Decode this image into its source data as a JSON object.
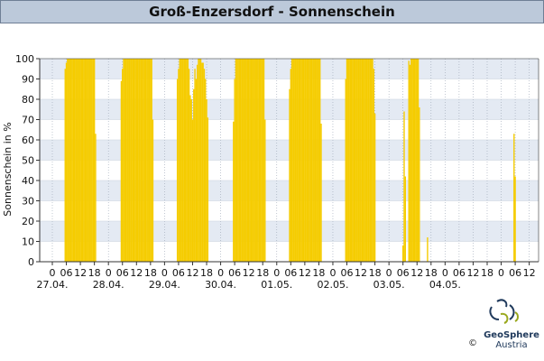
{
  "title": "Groß-Enzersdorf - Sonnenschein",
  "logo": {
    "name": "GeoSphere",
    "sub": "Austria",
    "copyright": "©"
  },
  "chart_data": {
    "type": "bar",
    "ylabel": "Sonnenschein in %",
    "ylim": [
      0,
      100
    ],
    "yticks": [
      0,
      10,
      20,
      30,
      40,
      50,
      60,
      70,
      80,
      90,
      100
    ],
    "x_hours_range": [
      0,
      204
    ],
    "hour_ticks": [
      {
        "h": 0,
        "label": "0"
      },
      {
        "h": 6,
        "label": "06"
      },
      {
        "h": 12,
        "label": "12"
      },
      {
        "h": 18,
        "label": "18"
      },
      {
        "h": 24,
        "label": "0"
      },
      {
        "h": 30,
        "label": "06"
      },
      {
        "h": 36,
        "label": "12"
      },
      {
        "h": 42,
        "label": "18"
      },
      {
        "h": 48,
        "label": "0"
      },
      {
        "h": 54,
        "label": "06"
      },
      {
        "h": 60,
        "label": "12"
      },
      {
        "h": 66,
        "label": "18"
      },
      {
        "h": 72,
        "label": "0"
      },
      {
        "h": 78,
        "label": "06"
      },
      {
        "h": 84,
        "label": "12"
      },
      {
        "h": 90,
        "label": "18"
      },
      {
        "h": 96,
        "label": "0"
      },
      {
        "h": 102,
        "label": "06"
      },
      {
        "h": 108,
        "label": "12"
      },
      {
        "h": 114,
        "label": "18"
      },
      {
        "h": 120,
        "label": "0"
      },
      {
        "h": 126,
        "label": "06"
      },
      {
        "h": 132,
        "label": "12"
      },
      {
        "h": 138,
        "label": "18"
      },
      {
        "h": 144,
        "label": "0"
      },
      {
        "h": 150,
        "label": "06"
      },
      {
        "h": 156,
        "label": "12"
      },
      {
        "h": 162,
        "label": "18"
      },
      {
        "h": 168,
        "label": "0"
      },
      {
        "h": 174,
        "label": "06"
      },
      {
        "h": 180,
        "label": "12"
      },
      {
        "h": 186,
        "label": "18"
      },
      {
        "h": 192,
        "label": "0"
      },
      {
        "h": 198,
        "label": "06"
      },
      {
        "h": 204,
        "label": "12"
      }
    ],
    "date_labels": [
      {
        "h": 0,
        "label": "27.04."
      },
      {
        "h": 24,
        "label": "28.04."
      },
      {
        "h": 48,
        "label": "29.04."
      },
      {
        "h": 72,
        "label": "30.04."
      },
      {
        "h": 96,
        "label": "01.05."
      },
      {
        "h": 120,
        "label": "02.05."
      },
      {
        "h": 144,
        "label": "03.05."
      },
      {
        "h": 168,
        "label": "04.05."
      }
    ],
    "bar_color": "#f5cc00",
    "bars": [
      {
        "h": 5.5,
        "v": 95
      },
      {
        "h": 6,
        "v": 98
      },
      {
        "h": 6.5,
        "v": 100
      },
      {
        "h": 7,
        "v": 100
      },
      {
        "h": 7.5,
        "v": 100
      },
      {
        "h": 8,
        "v": 100
      },
      {
        "h": 8.5,
        "v": 100
      },
      {
        "h": 9,
        "v": 100
      },
      {
        "h": 9.5,
        "v": 100
      },
      {
        "h": 10,
        "v": 100
      },
      {
        "h": 10.5,
        "v": 100
      },
      {
        "h": 11,
        "v": 100
      },
      {
        "h": 11.5,
        "v": 100
      },
      {
        "h": 12,
        "v": 100
      },
      {
        "h": 12.5,
        "v": 100
      },
      {
        "h": 13,
        "v": 100
      },
      {
        "h": 13.5,
        "v": 100
      },
      {
        "h": 14,
        "v": 100
      },
      {
        "h": 14.5,
        "v": 100
      },
      {
        "h": 15,
        "v": 100
      },
      {
        "h": 15.5,
        "v": 100
      },
      {
        "h": 16,
        "v": 100
      },
      {
        "h": 16.5,
        "v": 100
      },
      {
        "h": 17,
        "v": 100
      },
      {
        "h": 17.5,
        "v": 100
      },
      {
        "h": 18,
        "v": 100
      },
      {
        "h": 18.5,
        "v": 63
      },
      {
        "h": 29.5,
        "v": 89
      },
      {
        "h": 30,
        "v": 95
      },
      {
        "h": 30.5,
        "v": 100
      },
      {
        "h": 31,
        "v": 100
      },
      {
        "h": 31.5,
        "v": 100
      },
      {
        "h": 32,
        "v": 100
      },
      {
        "h": 32.5,
        "v": 100
      },
      {
        "h": 33,
        "v": 100
      },
      {
        "h": 33.5,
        "v": 100
      },
      {
        "h": 34,
        "v": 100
      },
      {
        "h": 34.5,
        "v": 100
      },
      {
        "h": 35,
        "v": 100
      },
      {
        "h": 35.5,
        "v": 100
      },
      {
        "h": 36,
        "v": 100
      },
      {
        "h": 36.5,
        "v": 100
      },
      {
        "h": 37,
        "v": 100
      },
      {
        "h": 37.5,
        "v": 100
      },
      {
        "h": 38,
        "v": 100
      },
      {
        "h": 38.5,
        "v": 100
      },
      {
        "h": 39,
        "v": 100
      },
      {
        "h": 39.5,
        "v": 100
      },
      {
        "h": 40,
        "v": 100
      },
      {
        "h": 40.5,
        "v": 100
      },
      {
        "h": 41,
        "v": 100
      },
      {
        "h": 41.5,
        "v": 100
      },
      {
        "h": 42,
        "v": 100
      },
      {
        "h": 42.5,
        "v": 100
      },
      {
        "h": 43,
        "v": 70
      },
      {
        "h": 53.5,
        "v": 90
      },
      {
        "h": 54,
        "v": 95
      },
      {
        "h": 54.5,
        "v": 100
      },
      {
        "h": 55,
        "v": 100
      },
      {
        "h": 55.5,
        "v": 100
      },
      {
        "h": 56,
        "v": 100
      },
      {
        "h": 56.5,
        "v": 100
      },
      {
        "h": 57,
        "v": 100
      },
      {
        "h": 57.5,
        "v": 100
      },
      {
        "h": 58,
        "v": 100
      },
      {
        "h": 58.5,
        "v": 95
      },
      {
        "h": 59,
        "v": 82
      },
      {
        "h": 59.5,
        "v": 80
      },
      {
        "h": 60,
        "v": 70
      },
      {
        "h": 60.5,
        "v": 85
      },
      {
        "h": 61,
        "v": 95
      },
      {
        "h": 61.5,
        "v": 90
      },
      {
        "h": 62,
        "v": 97
      },
      {
        "h": 62.5,
        "v": 100
      },
      {
        "h": 63,
        "v": 100
      },
      {
        "h": 63.5,
        "v": 100
      },
      {
        "h": 64,
        "v": 98
      },
      {
        "h": 64.5,
        "v": 98
      },
      {
        "h": 65,
        "v": 95
      },
      {
        "h": 65.5,
        "v": 90
      },
      {
        "h": 66,
        "v": 80
      },
      {
        "h": 66.5,
        "v": 71
      },
      {
        "h": 77.5,
        "v": 69
      },
      {
        "h": 78,
        "v": 90
      },
      {
        "h": 78.5,
        "v": 100
      },
      {
        "h": 79,
        "v": 100
      },
      {
        "h": 79.5,
        "v": 100
      },
      {
        "h": 80,
        "v": 100
      },
      {
        "h": 80.5,
        "v": 100
      },
      {
        "h": 81,
        "v": 100
      },
      {
        "h": 81.5,
        "v": 100
      },
      {
        "h": 82,
        "v": 100
      },
      {
        "h": 82.5,
        "v": 100
      },
      {
        "h": 83,
        "v": 100
      },
      {
        "h": 83.5,
        "v": 100
      },
      {
        "h": 84,
        "v": 100
      },
      {
        "h": 84.5,
        "v": 100
      },
      {
        "h": 85,
        "v": 100
      },
      {
        "h": 85.5,
        "v": 100
      },
      {
        "h": 86,
        "v": 100
      },
      {
        "h": 86.5,
        "v": 100
      },
      {
        "h": 87,
        "v": 100
      },
      {
        "h": 87.5,
        "v": 100
      },
      {
        "h": 88,
        "v": 100
      },
      {
        "h": 88.5,
        "v": 100
      },
      {
        "h": 89,
        "v": 100
      },
      {
        "h": 89.5,
        "v": 100
      },
      {
        "h": 90,
        "v": 100
      },
      {
        "h": 90.5,
        "v": 100
      },
      {
        "h": 91,
        "v": 70
      },
      {
        "h": 101.5,
        "v": 85
      },
      {
        "h": 102,
        "v": 95
      },
      {
        "h": 102.5,
        "v": 100
      },
      {
        "h": 103,
        "v": 100
      },
      {
        "h": 103.5,
        "v": 100
      },
      {
        "h": 104,
        "v": 100
      },
      {
        "h": 104.5,
        "v": 100
      },
      {
        "h": 105,
        "v": 100
      },
      {
        "h": 105.5,
        "v": 100
      },
      {
        "h": 106,
        "v": 100
      },
      {
        "h": 106.5,
        "v": 100
      },
      {
        "h": 107,
        "v": 100
      },
      {
        "h": 107.5,
        "v": 100
      },
      {
        "h": 108,
        "v": 100
      },
      {
        "h": 108.5,
        "v": 100
      },
      {
        "h": 109,
        "v": 100
      },
      {
        "h": 109.5,
        "v": 100
      },
      {
        "h": 110,
        "v": 100
      },
      {
        "h": 110.5,
        "v": 100
      },
      {
        "h": 111,
        "v": 100
      },
      {
        "h": 111.5,
        "v": 100
      },
      {
        "h": 112,
        "v": 100
      },
      {
        "h": 112.5,
        "v": 100
      },
      {
        "h": 113,
        "v": 100
      },
      {
        "h": 113.5,
        "v": 100
      },
      {
        "h": 114,
        "v": 100
      },
      {
        "h": 114.5,
        "v": 100
      },
      {
        "h": 115,
        "v": 68
      },
      {
        "h": 125.5,
        "v": 90
      },
      {
        "h": 126,
        "v": 100
      },
      {
        "h": 126.5,
        "v": 100
      },
      {
        "h": 127,
        "v": 100
      },
      {
        "h": 127.5,
        "v": 100
      },
      {
        "h": 128,
        "v": 100
      },
      {
        "h": 128.5,
        "v": 100
      },
      {
        "h": 129,
        "v": 100
      },
      {
        "h": 129.5,
        "v": 100
      },
      {
        "h": 130,
        "v": 100
      },
      {
        "h": 130.5,
        "v": 100
      },
      {
        "h": 131,
        "v": 100
      },
      {
        "h": 131.5,
        "v": 100
      },
      {
        "h": 132,
        "v": 100
      },
      {
        "h": 132.5,
        "v": 100
      },
      {
        "h": 133,
        "v": 100
      },
      {
        "h": 133.5,
        "v": 100
      },
      {
        "h": 134,
        "v": 100
      },
      {
        "h": 134.5,
        "v": 100
      },
      {
        "h": 135,
        "v": 100
      },
      {
        "h": 135.5,
        "v": 100
      },
      {
        "h": 136,
        "v": 100
      },
      {
        "h": 136.5,
        "v": 100
      },
      {
        "h": 137,
        "v": 100
      },
      {
        "h": 137.5,
        "v": 95
      },
      {
        "h": 138,
        "v": 73
      },
      {
        "h": 150,
        "v": 8
      },
      {
        "h": 150.5,
        "v": 74
      },
      {
        "h": 151,
        "v": 42
      },
      {
        "h": 152.5,
        "v": 99
      },
      {
        "h": 153,
        "v": 97
      },
      {
        "h": 153.5,
        "v": 100
      },
      {
        "h": 154,
        "v": 100
      },
      {
        "h": 154.5,
        "v": 100
      },
      {
        "h": 155,
        "v": 100
      },
      {
        "h": 155.5,
        "v": 100
      },
      {
        "h": 156,
        "v": 100
      },
      {
        "h": 156.5,
        "v": 100
      },
      {
        "h": 157,
        "v": 76
      },
      {
        "h": 160.5,
        "v": 12
      },
      {
        "h": 197.5,
        "v": 63
      },
      {
        "h": 198,
        "v": 42
      }
    ]
  }
}
